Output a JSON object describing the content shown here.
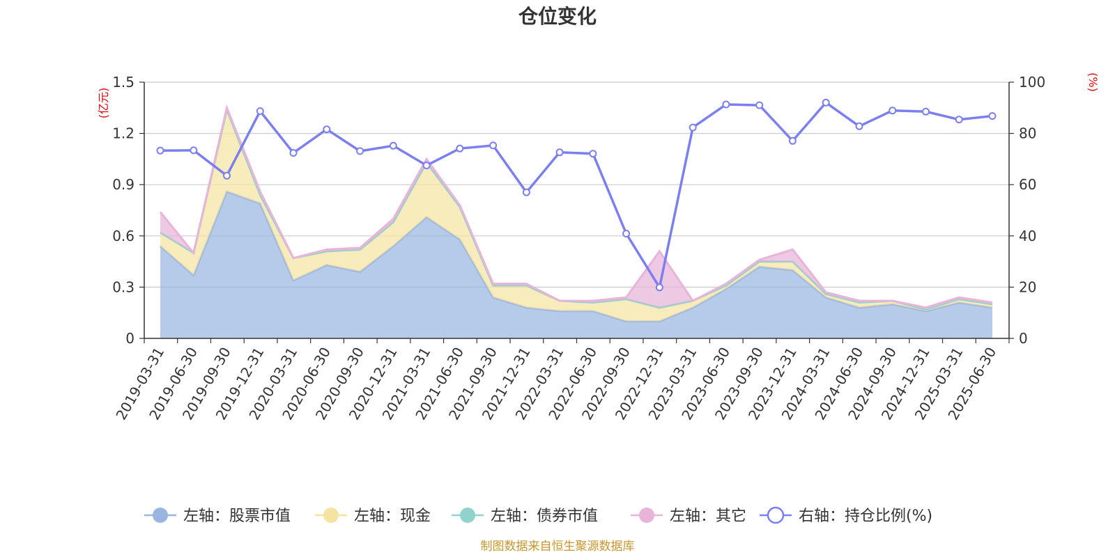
{
  "chart_data": {
    "type": "area",
    "title": "仓位变化",
    "source_note": "制图数据来自恒生聚源数据库",
    "left_axis": {
      "unit": "(亿元)",
      "ylim": [
        0,
        1.5
      ],
      "ticks": [
        "0",
        "0.3",
        "0.6",
        "0.9",
        "1.2",
        "1.5"
      ],
      "tick_values": [
        0,
        0.3,
        0.6,
        0.9,
        1.2,
        1.5
      ]
    },
    "right_axis": {
      "unit": "(%)",
      "ylim": [
        0,
        100
      ],
      "ticks": [
        "0",
        "20",
        "40",
        "60",
        "80",
        "100"
      ],
      "tick_values": [
        0,
        20,
        40,
        60,
        80,
        100
      ]
    },
    "categories": [
      "2019-03-31",
      "2019-06-30",
      "2019-09-30",
      "2019-12-31",
      "2020-03-31",
      "2020-06-30",
      "2020-09-30",
      "2020-12-31",
      "2021-03-31",
      "2021-06-30",
      "2021-09-30",
      "2021-12-31",
      "2022-03-31",
      "2022-06-30",
      "2022-09-30",
      "2022-12-31",
      "2023-03-31",
      "2023-06-30",
      "2023-09-30",
      "2023-12-31",
      "2024-03-31",
      "2024-06-30",
      "2024-09-30",
      "2024-12-31",
      "2025-03-31",
      "2025-06-30"
    ],
    "series": [
      {
        "name": "左轴：股票市值",
        "axis": "left",
        "kind": "stacked-area",
        "color": "#9ab5e0",
        "values": [
          0.54,
          0.37,
          0.86,
          0.79,
          0.34,
          0.43,
          0.39,
          0.54,
          0.71,
          0.58,
          0.24,
          0.18,
          0.16,
          0.16,
          0.1,
          0.1,
          0.18,
          0.29,
          0.42,
          0.4,
          0.24,
          0.18,
          0.2,
          0.16,
          0.21,
          0.18
        ]
      },
      {
        "name": "左轴：现金",
        "axis": "left",
        "kind": "stacked-area",
        "color": "#f5e3a2",
        "values": [
          0.08,
          0.13,
          0.48,
          0.05,
          0.13,
          0.08,
          0.13,
          0.14,
          0.32,
          0.19,
          0.07,
          0.13,
          0.06,
          0.05,
          0.13,
          0.08,
          0.04,
          0.02,
          0.03,
          0.05,
          0.02,
          0.03,
          0.02,
          0.01,
          0.02,
          0.02
        ]
      },
      {
        "name": "左轴：债券市值",
        "axis": "left",
        "kind": "stacked-area",
        "color": "#8fd3cf",
        "values": [
          0,
          0,
          0,
          0,
          0,
          0,
          0,
          0,
          0,
          0,
          0,
          0,
          0,
          0,
          0,
          0,
          0,
          0,
          0,
          0,
          0,
          0,
          0,
          0,
          0,
          0
        ]
      },
      {
        "name": "左轴：其它",
        "axis": "left",
        "kind": "stacked-area",
        "color": "#e8b4d8",
        "values": [
          0.12,
          0.0,
          0.01,
          0.02,
          0.0,
          0.01,
          0.01,
          0.02,
          0.02,
          0.01,
          0.01,
          0.01,
          0.0,
          0.01,
          0.01,
          0.33,
          0.0,
          0.01,
          0.01,
          0.07,
          0.01,
          0.01,
          0.0,
          0.01,
          0.01,
          0.01
        ]
      },
      {
        "name": "右轴：持仓比例(%)",
        "axis": "right",
        "kind": "line",
        "color": "#7b7ff0",
        "values": [
          73.3,
          73.4,
          63.5,
          88.7,
          72.4,
          81.6,
          73.1,
          75.2,
          67.5,
          74.1,
          75.3,
          57.0,
          72.6,
          72.1,
          40.9,
          19.9,
          82.3,
          91.3,
          91.0,
          77.1,
          92.0,
          82.8,
          88.9,
          88.5,
          85.4,
          86.8
        ]
      }
    ],
    "legend_position": "bottom",
    "grid": true
  }
}
